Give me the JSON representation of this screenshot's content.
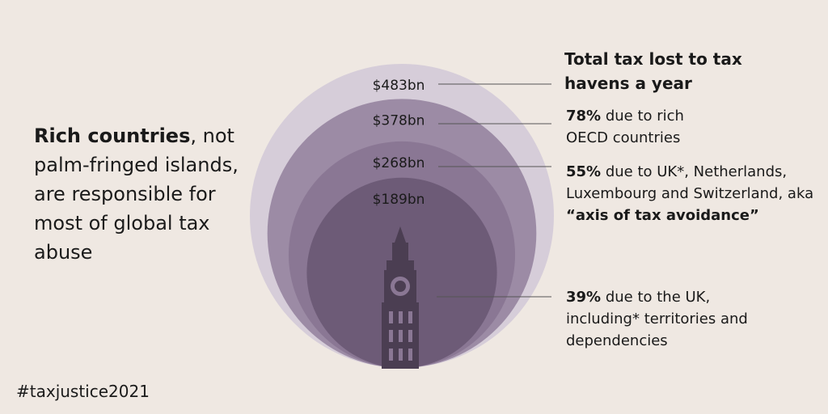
{
  "chart_data": {
    "type": "nested-circles",
    "title": "Total tax lost to tax havens a year",
    "values": [
      483,
      378,
      268,
      189
    ],
    "value_labels": [
      "$483bn",
      "$378bn",
      "$268bn",
      "$189bn"
    ],
    "colors": [
      "#d6cdd9",
      "#9c8ba5",
      "#8a7794",
      "#6d5b77"
    ],
    "annotations": [
      {
        "parts": [
          {
            "text": "78%",
            "bold": true
          },
          {
            "text": " due to rich OECD countries",
            "bold": false
          }
        ]
      },
      {
        "parts": [
          {
            "text": "55%",
            "bold": true
          },
          {
            "text": " due to UK*, Netherlands, Luxembourg and Switzerland, aka ",
            "bold": false
          },
          {
            "text": "“axis of tax avoidance”",
            "bold": true
          }
        ]
      },
      {
        "parts": [
          {
            "text": "39%",
            "bold": true
          },
          {
            "text": " due to the UK, including* territories and dependencies",
            "bold": false
          }
        ]
      }
    ]
  },
  "headline": {
    "parts": [
      {
        "text": "Rich countries",
        "bold": true
      },
      {
        "text": ", not palm-fringed islands, are responsible for most of global tax abuse",
        "bold": false
      }
    ]
  },
  "hashtag": "#taxjustice2021"
}
